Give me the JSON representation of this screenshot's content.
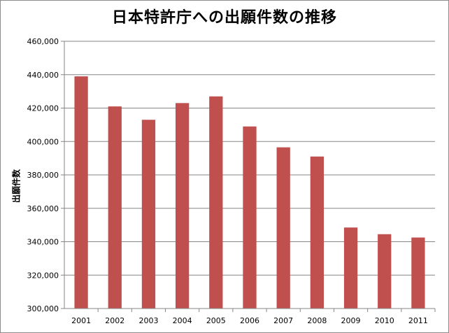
{
  "chart_data": {
    "type": "bar",
    "title": "日本特許庁への出願件数の推移",
    "xlabel": "",
    "ylabel": "出願件数",
    "categories": [
      "2001",
      "2002",
      "2003",
      "2004",
      "2005",
      "2006",
      "2007",
      "2008",
      "2009",
      "2010",
      "2011"
    ],
    "series": [
      {
        "values": [
          439000,
          421000,
          413000,
          423000,
          427000,
          409000,
          396500,
          391000,
          348500,
          344500,
          342500
        ],
        "color": "#c0504d"
      }
    ],
    "ylim": [
      300000,
      460000
    ],
    "yticks": [
      "300,000",
      "320,000",
      "340,000",
      "360,000",
      "380,000",
      "400,000",
      "420,000",
      "440,000",
      "460,000"
    ],
    "grid": true,
    "legend": "none"
  }
}
